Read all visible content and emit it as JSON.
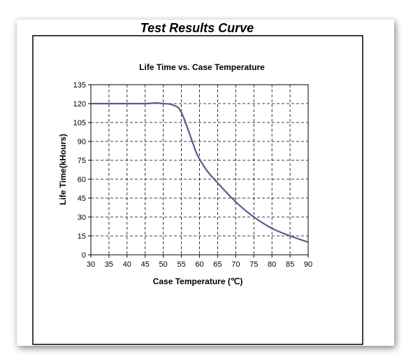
{
  "page": {
    "heading": "Test Results Curve"
  },
  "chart_data": {
    "type": "line",
    "title": "Life Time vs. Case Temperature",
    "xlabel": "Case Temperature  (℃)",
    "ylabel": "Life Time(kHours)",
    "xlim": [
      30,
      90
    ],
    "ylim": [
      0,
      135
    ],
    "xticks": [
      "30",
      "35",
      "40",
      "45",
      "50",
      "55",
      "60",
      "65",
      "70",
      "75",
      "80",
      "85",
      "90"
    ],
    "yticks": [
      "0",
      "15",
      "30",
      "45",
      "60",
      "75",
      "90",
      "105",
      "120",
      "135"
    ],
    "grid": true,
    "series": [
      {
        "color": "#5b5a8c",
        "x": [
          30,
          35,
          40,
          45,
          48,
          50,
          52,
          54,
          55,
          56,
          57,
          58,
          59,
          60,
          62,
          65,
          70,
          75,
          80,
          85,
          90
        ],
        "y": [
          120,
          120,
          120,
          120,
          120.5,
          120,
          119.5,
          117,
          113,
          106,
          98,
          90,
          82,
          76,
          67,
          57,
          42,
          30,
          21,
          15,
          10
        ]
      }
    ]
  }
}
